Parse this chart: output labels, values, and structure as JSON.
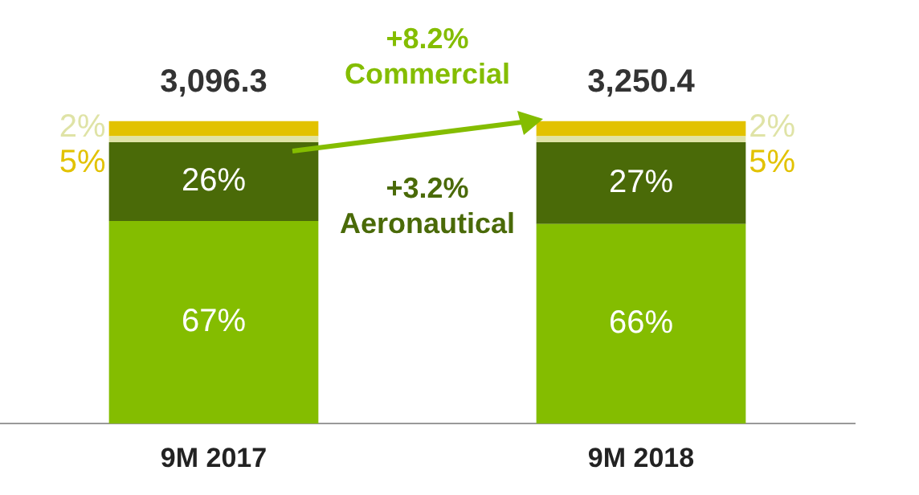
{
  "chart_data": {
    "type": "bar",
    "stacked": true,
    "categories": [
      "9M 2017",
      "9M 2018"
    ],
    "series": [
      {
        "color": "#84bd00",
        "values": [
          67,
          66
        ],
        "value_labels": [
          "67%",
          "66%"
        ]
      },
      {
        "color": "#4a6a08",
        "values": [
          26,
          27
        ],
        "value_labels": [
          "26%",
          "27%"
        ]
      },
      {
        "color": "#dfe3a6",
        "values": [
          2,
          2
        ],
        "value_labels": [
          "2%",
          "2%"
        ]
      },
      {
        "color": "#e2c200",
        "values": [
          5,
          5
        ],
        "value_labels": [
          "5%",
          "5%"
        ]
      }
    ],
    "annotations": [
      {
        "text": "3,096.3",
        "x": "9M 2017",
        "y": 100
      },
      {
        "text": "3,250.4",
        "x": "9M 2018",
        "y": 100
      },
      "+8.2%\nCommercial",
      "+3.2%\nAeronautical"
    ],
    "legend": false,
    "grid": false
  }
}
